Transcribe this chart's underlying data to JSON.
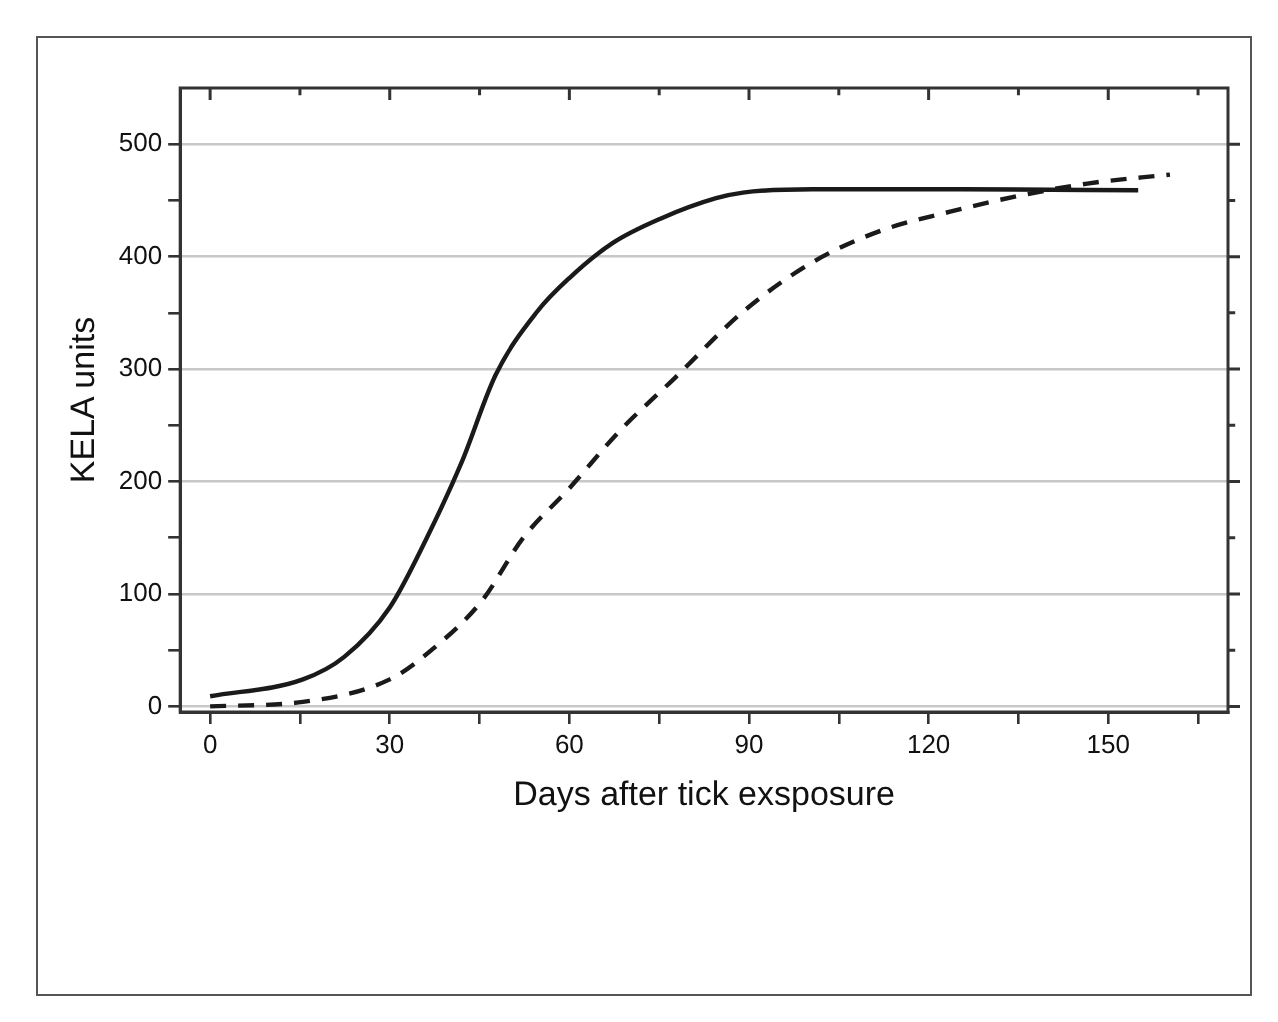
{
  "chart_data": {
    "type": "line",
    "xlabel": "Days after tick exsposure",
    "ylabel": "KELA units",
    "xlim": [
      -5,
      170
    ],
    "ylim": [
      -5,
      550
    ],
    "xticks": [
      0,
      {
        "value": 15,
        "label": null
      },
      30,
      {
        "value": 45,
        "label": null
      },
      60,
      {
        "value": 75,
        "label": null
      },
      90,
      {
        "value": 105,
        "label": null
      },
      120,
      {
        "value": 135,
        "label": null
      },
      150,
      {
        "value": 165,
        "label": null
      }
    ],
    "yticks": [
      0,
      {
        "value": 50,
        "label": null
      },
      100,
      {
        "value": 150,
        "label": null
      },
      200,
      {
        "value": 250,
        "label": null
      },
      300,
      {
        "value": 350,
        "label": null
      },
      400,
      {
        "value": 450,
        "label": null
      },
      500
    ],
    "grid": "y",
    "marker": "none",
    "series": [
      {
        "color": "#1a1a1a",
        "line_style": "solid",
        "x": [
          0,
          15.5,
          22.4,
          30,
          36.2,
          42,
          47.7,
          54.6,
          60,
          67.2,
          75.3,
          84.5,
          89,
          100.6,
          123.6,
          155
        ],
        "values": [
          9,
          24,
          44,
          88,
          150,
          217,
          295,
          351,
          381,
          412,
          434,
          452,
          457,
          460,
          460,
          459
        ]
      },
      {
        "color": "#1a1a1a",
        "line_style": "dashed",
        "x": [
          0,
          15.5,
          30,
          37.4,
          45.4,
          52.3,
          60,
          68.4,
          77.6,
          89,
          100.6,
          112,
          123.6,
          135,
          146.5,
          160.3
        ],
        "values": [
          0,
          4,
          24,
          52,
          94,
          150,
          194,
          245,
          292,
          351,
          395,
          423,
          440,
          454,
          465,
          473
        ]
      }
    ]
  }
}
